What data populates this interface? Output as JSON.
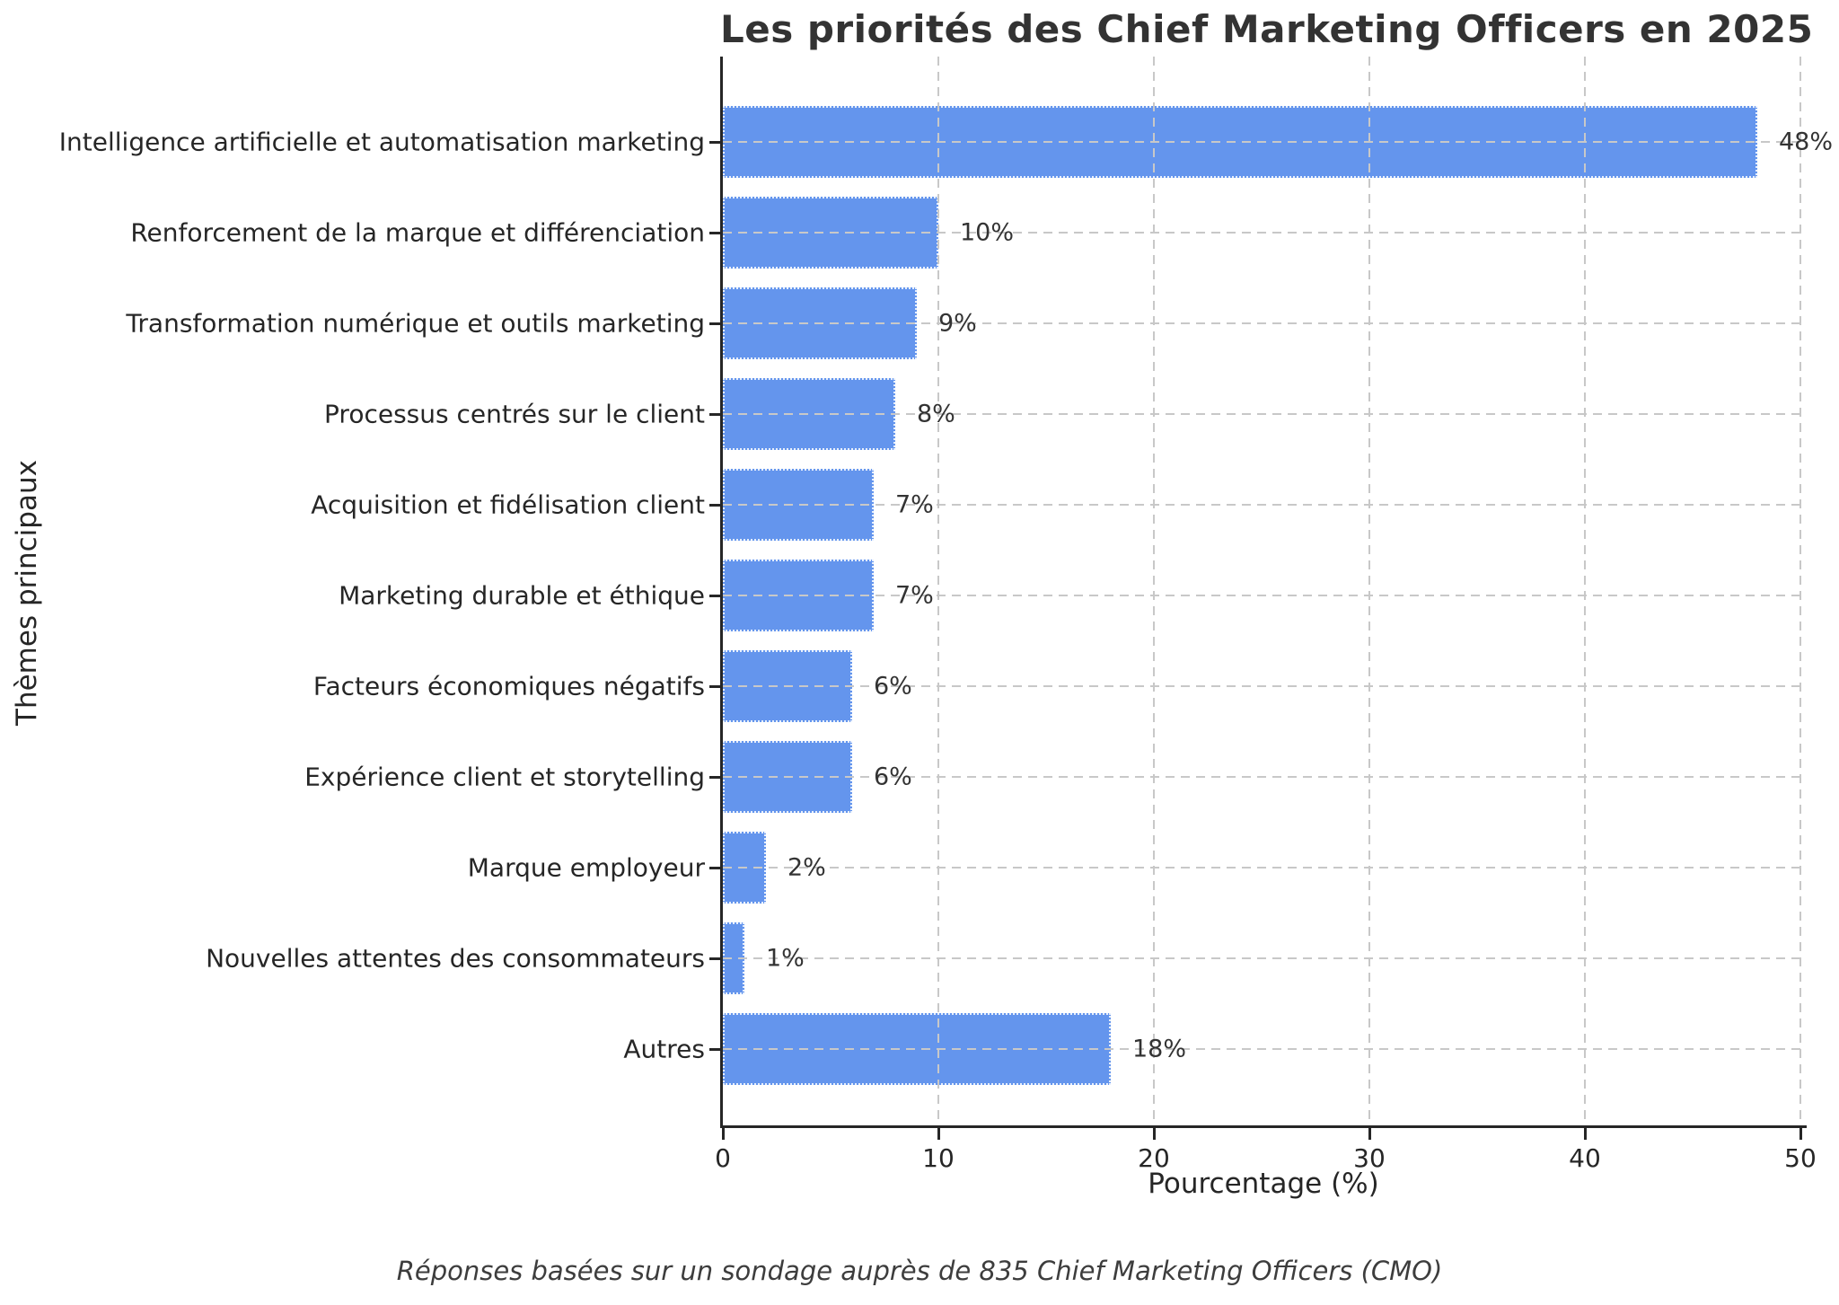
{
  "title": "Les priorités des Chief Marketing Officers en 2025",
  "footnote": "Réponses basées sur un sondage auprès de 835 Chief Marketing Officers (CMO)",
  "chart_data": {
    "type": "bar",
    "orientation": "horizontal",
    "title": "Les priorités des Chief Marketing Officers en 2025",
    "xlabel": "Pourcentage (%)",
    "ylabel": "Thèmes principaux",
    "xlim": [
      0,
      50.4
    ],
    "xticks": [
      0,
      10,
      20,
      30,
      40,
      50
    ],
    "grid": true,
    "legend": "none",
    "categories": [
      "Intelligence artificielle et automatisation marketing",
      "Renforcement de la marque et différenciation",
      "Transformation numérique et outils marketing",
      "Processus centrés sur le client",
      "Acquisition et fidélisation client",
      "Marketing durable et éthique",
      "Facteurs économiques négatifs",
      "Expérience client et storytelling",
      "Marque employeur",
      "Nouvelles attentes des consommateurs",
      "Autres"
    ],
    "values": [
      48,
      10,
      9,
      8,
      7,
      7,
      6,
      6,
      2,
      1,
      18
    ],
    "value_labels": [
      "48%",
      "10%",
      "9%",
      "8%",
      "7%",
      "7%",
      "6%",
      "6%",
      "2%",
      "1%",
      "18%"
    ],
    "annotation_note": "Réponses basées sur un sondage auprès de 835 Chief Marketing Officers (CMO)",
    "colors": {
      "bar": "#6495ED",
      "grid": "#c8c8c8",
      "spine": "#262626",
      "text": "#262626",
      "value_text": "#333333",
      "background": "#ffffff"
    }
  }
}
